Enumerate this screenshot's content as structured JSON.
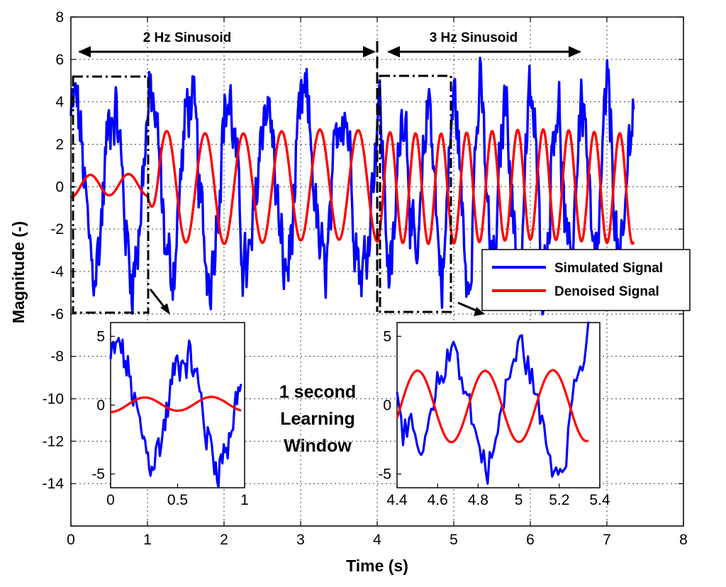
{
  "chart_data": {
    "type": "line",
    "xlabel": "Time (s)",
    "ylabel": "Magnitude (-)",
    "xlim": [
      0,
      8
    ],
    "ylim": [
      -16,
      8
    ],
    "xticks": [
      "0",
      "1",
      "2",
      "3",
      "4",
      "5",
      "6",
      "7",
      "8"
    ],
    "yticks": [
      "8",
      "6",
      "4",
      "2",
      "0",
      "-2",
      "-4",
      "-6",
      "-8",
      "-10",
      "-12",
      "-14"
    ],
    "series": [
      {
        "name": "Simulated Signal",
        "color": "#0000ff"
      },
      {
        "name": "Denoised Signal",
        "color": "#ff0000"
      }
    ],
    "signal_model": {
      "t_end": 7.35,
      "segment1": {
        "t_start": 0,
        "t_end": 4,
        "freq_hz": 2
      },
      "segment2": {
        "t_start": 4,
        "t_end": 7.35,
        "freq_hz": 3
      },
      "simulated_peak_amplitude": 4.0,
      "denoised_peak_amplitude": 2.6,
      "learning_window_s": 1
    },
    "annotations": {
      "seg1_label": "2 Hz Sinusoid",
      "seg2_label": "3 Hz Sinusoid",
      "window_text": [
        "1 second",
        "Learning",
        "Window"
      ]
    },
    "insets": [
      {
        "xlim": [
          0,
          1
        ],
        "ylim": [
          -6,
          6
        ],
        "xticks": [
          "0",
          "0.5",
          "1"
        ],
        "yticks": [
          "5",
          "0",
          "-5"
        ]
      },
      {
        "xlim": [
          4.4,
          5.4
        ],
        "ylim": [
          -6,
          6
        ],
        "xticks": [
          "4.4",
          "4.6",
          "4.8",
          "5",
          "5.2",
          "5.4"
        ],
        "yticks": [
          "5",
          "0",
          "-5"
        ]
      }
    ],
    "legend": {
      "position": "center-right",
      "entries": [
        "Simulated Signal",
        "Denoised Signal"
      ]
    }
  }
}
